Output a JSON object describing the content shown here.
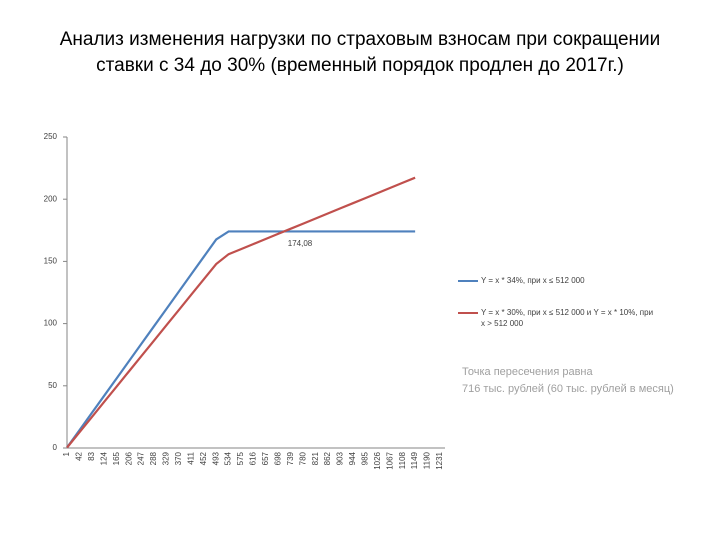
{
  "chart_data": {
    "type": "line",
    "title": [
      "Анализ изменения нагрузки по страховым взносам при сокращении",
      "ставки с 34 до 30% (временный порядок продлен до 2017г.)"
    ],
    "categories": [
      "1",
      "42",
      "83",
      "124",
      "165",
      "206",
      "247",
      "288",
      "329",
      "370",
      "411",
      "452",
      "493",
      "534",
      "575",
      "616",
      "657",
      "698",
      "739",
      "780",
      "821",
      "862",
      "903",
      "944",
      "985",
      "1026",
      "1067",
      "1108",
      "1149",
      "1190",
      "1231"
    ],
    "series": [
      {
        "name": "Y = x * 34%, при x ≤ 512 000",
        "color": "#4f81bd",
        "values": [
          0.34,
          14.28,
          28.22,
          42.16,
          56.1,
          70.04,
          83.98,
          97.92,
          111.86,
          125.8,
          139.74,
          153.68,
          167.62,
          174.08,
          174.08,
          174.08,
          174.08,
          174.08,
          174.08,
          174.08,
          174.08,
          174.08,
          174.08,
          174.08,
          174.08,
          174.08,
          174.08,
          174.08,
          174.08,
          null,
          null
        ]
      },
      {
        "name": "Y = x * 30%, при x ≤ 512 000 и Y = x * 10%, при x > 512 000",
        "color": "#c0504d",
        "values": [
          0.3,
          12.6,
          24.9,
          37.2,
          49.5,
          61.8,
          74.1,
          86.4,
          98.7,
          111,
          123.3,
          135.6,
          147.9,
          155.8,
          159.9,
          164,
          168.1,
          172.2,
          176.3,
          180.4,
          184.5,
          188.6,
          192.7,
          196.8,
          200.9,
          205,
          209.1,
          213.2,
          217.3,
          null,
          null
        ]
      }
    ],
    "ylim": [
      0,
      250
    ],
    "yticks": [
      0,
      50,
      100,
      150,
      200,
      250
    ],
    "grid": false,
    "annotations": [
      {
        "text": "174,08"
      }
    ],
    "note": [
      "Точка пересечения равна",
      "716 тыс. рублей (60 тыс. рублей в месяц)"
    ]
  }
}
